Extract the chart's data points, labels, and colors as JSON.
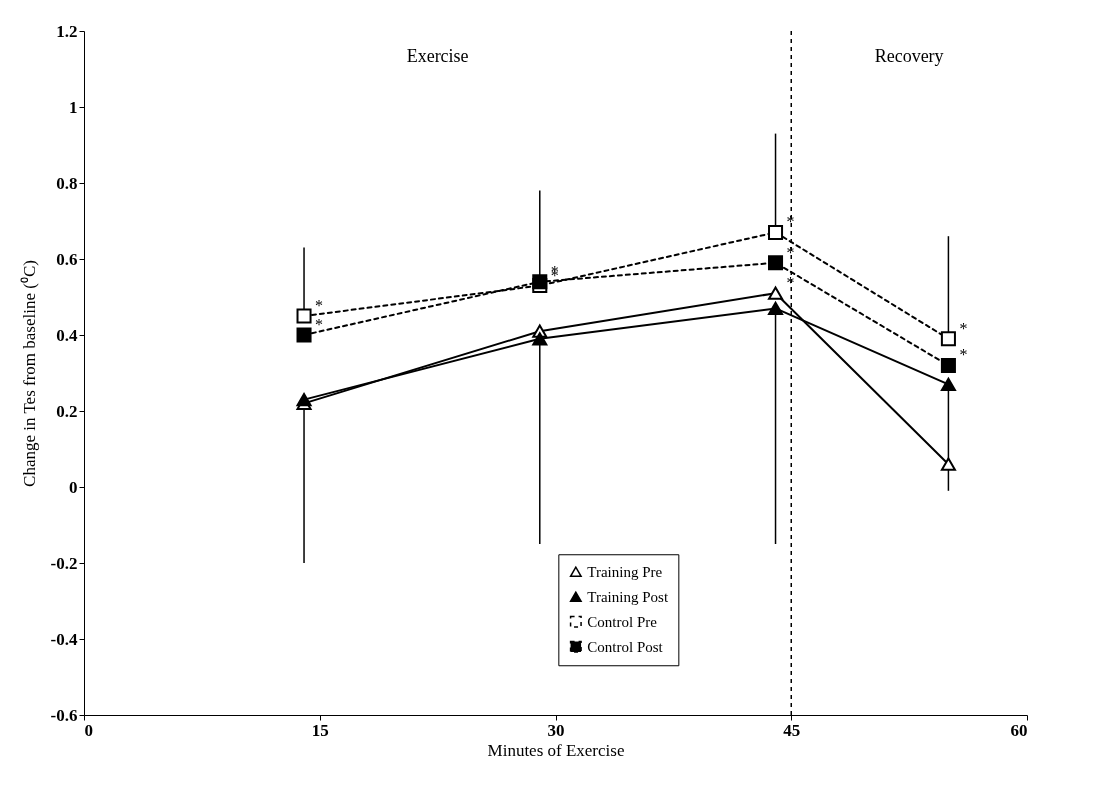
{
  "chart_data": {
    "type": "line",
    "xlabel": "Minutes of Exercise",
    "ylabel": "Change in Tes from baseline (⁰C)",
    "xlim": [
      0,
      60
    ],
    "xticks": [
      0,
      15,
      30,
      45,
      60
    ],
    "ylim": [
      -0.6,
      1.2
    ],
    "yticks": [
      -0.6,
      -0.4,
      -0.2,
      {
        "value": 0,
        "label": "0"
      },
      0.2,
      0.4,
      0.6,
      0.8,
      {
        "value": 1,
        "label": "1"
      },
      1.2
    ],
    "x": [
      14,
      29,
      44,
      55
    ],
    "legend": "bottom right",
    "grid": false,
    "series": [
      {
        "name": "Training Pre",
        "color": "#000000",
        "colors": [
          "#ffffff",
          "#ffffff",
          "#ffffff",
          "#ffffff"
        ],
        "marker": "triangle",
        "line_style": "solid",
        "values": [
          0.22,
          0.41,
          0.51,
          0.06
        ],
        "errors": [
          [
            -0.2,
            0.22
          ],
          null,
          null,
          [
            -0.01,
            0.06
          ]
        ]
      },
      {
        "name": "Training Post",
        "color": "#000000",
        "colors": [
          "#000000",
          "#000000",
          "#000000",
          "#000000"
        ],
        "marker": "triangle",
        "line_style": "solid",
        "values": [
          0.23,
          0.39,
          0.47,
          0.27
        ],
        "errors": [
          null,
          [
            -0.15,
            0.39
          ],
          [
            -0.15,
            0.47
          ],
          [
            0.06,
            0.27
          ]
        ]
      },
      {
        "name": "Control Pre",
        "color": "#000000",
        "colors": [
          "#ffffff",
          "#ffffff",
          "#ffffff",
          "#ffffff"
        ],
        "marker": "square",
        "line_style": "dashed",
        "values": [
          0.45,
          0.53,
          0.67,
          0.39
        ],
        "errors": [
          [
            0.45,
            0.63
          ],
          null,
          [
            0.67,
            0.93
          ],
          [
            0.39,
            0.66
          ]
        ]
      },
      {
        "name": "Control Post",
        "color": "#000000",
        "colors": [
          "#000000",
          "#000000",
          "#000000",
          "#000000"
        ],
        "marker": "square",
        "line_style": "dashed",
        "values": [
          0.4,
          0.54,
          0.59,
          0.32
        ],
        "errors": [
          null,
          [
            0.54,
            0.78
          ],
          null,
          null
        ]
      }
    ],
    "ref_lines": [
      {
        "axis": "x",
        "value": 45,
        "line_style": "dashed",
        "color": "#000000"
      }
    ],
    "annotations": [
      "Exercise",
      "Recovery",
      {
        "text": "*",
        "x": 14,
        "y": 0.45
      },
      {
        "text": "*",
        "x": 14,
        "y": 0.4
      },
      {
        "text": "*",
        "x": 29,
        "y": 0.54
      },
      {
        "text": "*",
        "x": 29,
        "y": 0.53
      },
      {
        "text": "*",
        "x": 44,
        "y": 0.67
      },
      {
        "text": "*",
        "x": 44,
        "y": 0.59
      },
      {
        "text": "*",
        "x": 44,
        "y": 0.51
      },
      {
        "text": "*",
        "x": 55,
        "y": 0.39
      },
      {
        "text": "*",
        "x": 55,
        "y": 0.32
      }
    ]
  }
}
